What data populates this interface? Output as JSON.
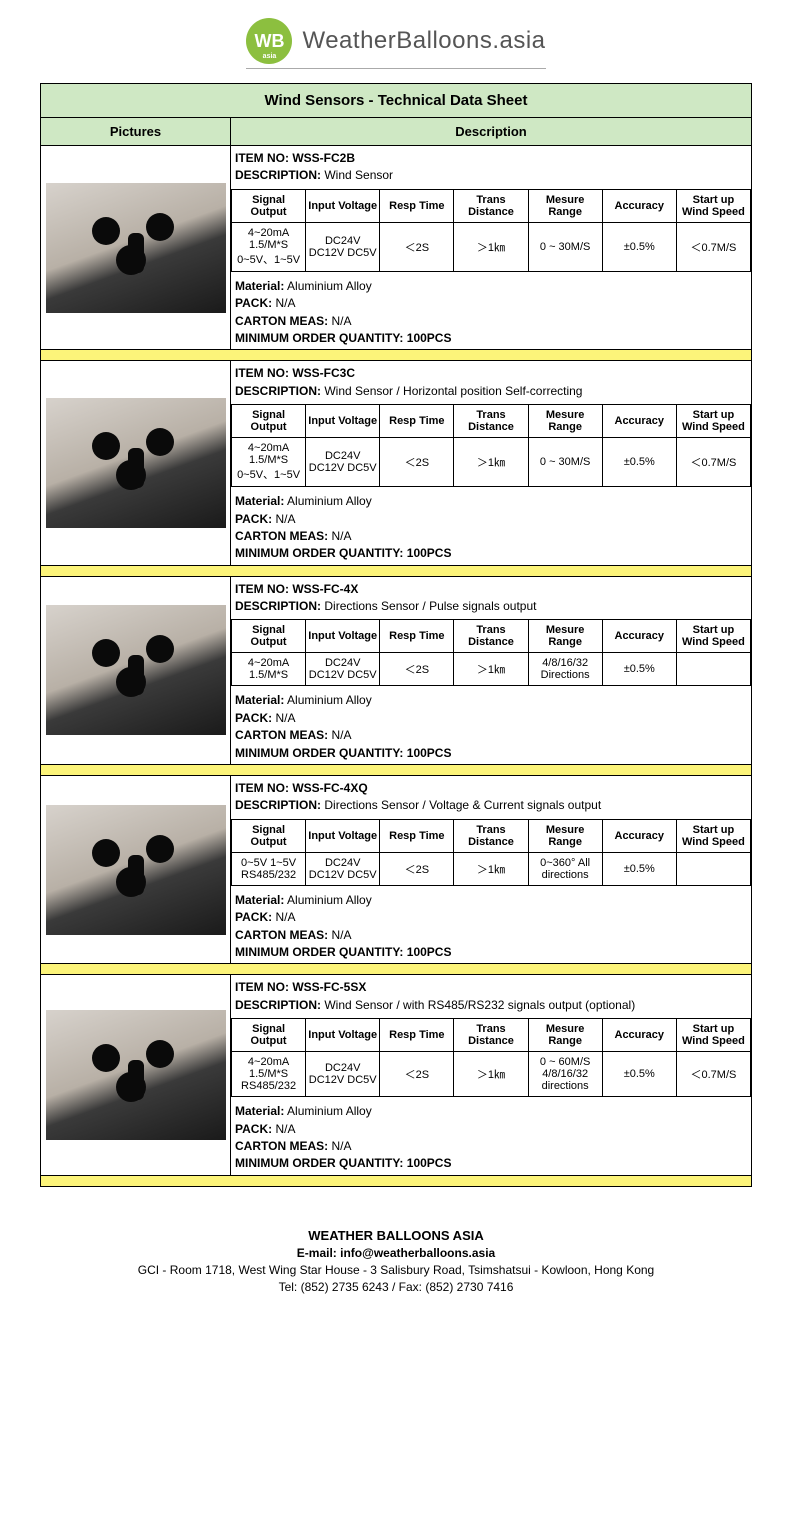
{
  "logo": {
    "badge": "WB",
    "badge_sub": "asia",
    "text": "WeatherBalloons.asia"
  },
  "title": "Wind Sensors - Technical Data Sheet",
  "col_heads": {
    "pictures": "Pictures",
    "description": "Description"
  },
  "spec_heads": [
    "Signal Output",
    "Input Voltage",
    "Resp Time",
    "Trans Distance",
    "Mesure Range",
    "Accuracy",
    "Start up Wind Speed"
  ],
  "labels": {
    "item_no": "ITEM NO:",
    "description": "DESCRIPTION:",
    "material": "Material:",
    "pack": "PACK:",
    "carton": "CARTON MEAS:",
    "moq": "MINIMUM ORDER QUANTITY:"
  },
  "products": [
    {
      "item_no": "WSS-FC2B",
      "desc": "Wind Sensor",
      "spec": [
        "4~20mA 1.5/M*S 0~5V、1~5V",
        "DC24V DC12V DC5V",
        "＜2S",
        "＞1㎞",
        "0 ~ 30M/S",
        "±0.5%",
        "＜0.7M/S"
      ],
      "material": "Aluminium Alloy",
      "pack": "N/A",
      "carton": "N/A",
      "moq": "100PCS"
    },
    {
      "item_no": "WSS-FC3C",
      "desc": "Wind Sensor / Horizontal position Self-correcting",
      "spec": [
        "4~20mA 1.5/M*S 0~5V、1~5V",
        "DC24V DC12V DC5V",
        "＜2S",
        "＞1㎞",
        "0 ~ 30M/S",
        "±0.5%",
        "＜0.7M/S"
      ],
      "material": "Aluminium Alloy",
      "pack": "N/A",
      "carton": "N/A",
      "moq": "100PCS"
    },
    {
      "item_no": "WSS-FC-4X",
      "desc": "Directions Sensor / Pulse signals output",
      "spec": [
        "4~20mA 1.5/M*S",
        "DC24V DC12V DC5V",
        "＜2S",
        "＞1㎞",
        "4/8/16/32 Directions",
        "±0.5%",
        ""
      ],
      "material": "Aluminium Alloy",
      "pack": "N/A",
      "carton": "N/A",
      "moq": "100PCS"
    },
    {
      "item_no": "WSS-FC-4XQ",
      "desc": "Directions Sensor / Voltage & Current signals output",
      "spec": [
        "0~5V 1~5V RS485/232",
        "DC24V DC12V DC5V",
        "＜2S",
        "＞1㎞",
        "0~360° All directions",
        "±0.5%",
        ""
      ],
      "material": "Aluminium Alloy",
      "pack": "N/A",
      "carton": "N/A",
      "moq": "100PCS"
    },
    {
      "item_no": "WSS-FC-5SX",
      "desc": "Wind Sensor / with RS485/RS232 signals output (optional)",
      "spec": [
        "4~20mA 1.5/M*S RS485/232",
        "DC24V DC12V DC5V",
        "＜2S",
        "＞1㎞",
        "0 ~ 60M/S 4/8/16/32 directions",
        "±0.5%",
        "＜0.7M/S"
      ],
      "material": "Aluminium Alloy",
      "pack": "N/A",
      "carton": "N/A",
      "moq": "100PCS"
    }
  ],
  "footer": {
    "company": "WEATHER BALLOONS ASIA",
    "email_label": "E-mail:",
    "email": "info@weatherballoons.asia",
    "address": "GCI - Room 1718, West Wing Star House - 3 Salisbury Road, Tsimshatsui - Kowloon, Hong Kong",
    "phone": "Tel: (852) 2735 6243 / Fax: (852) 2730 7416"
  },
  "colors": {
    "header_bg": "#cfe8c4",
    "separator_bg": "#fcf47a",
    "border": "#000000"
  }
}
